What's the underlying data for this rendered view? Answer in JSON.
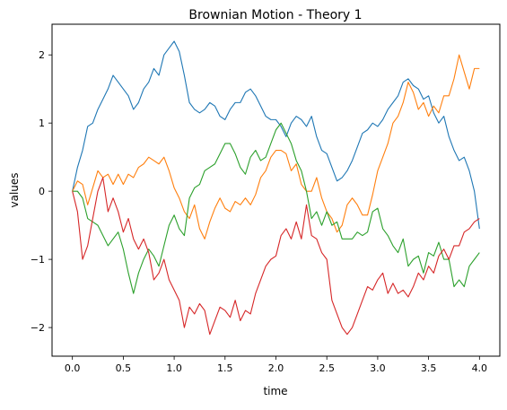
{
  "chart_data": {
    "type": "line",
    "title": "Brownian Motion - Theory 1",
    "xlabel": "time",
    "ylabel": "values",
    "xlim": [
      -0.2,
      4.2
    ],
    "ylim": [
      -2.42,
      2.45
    ],
    "x_ticks": [
      {
        "value": 0.0,
        "label": "0.0"
      },
      {
        "value": 0.5,
        "label": "0.5"
      },
      {
        "value": 1.0,
        "label": "1.0"
      },
      {
        "value": 1.5,
        "label": "1.5"
      },
      {
        "value": 2.0,
        "label": "2.0"
      },
      {
        "value": 2.5,
        "label": "2.5"
      },
      {
        "value": 3.0,
        "label": "3.0"
      },
      {
        "value": 3.5,
        "label": "3.5"
      },
      {
        "value": 4.0,
        "label": "4.0"
      }
    ],
    "y_ticks": [
      {
        "value": 2,
        "label": "2"
      },
      {
        "value": 1,
        "label": "1"
      },
      {
        "value": 0,
        "label": "0"
      },
      {
        "value": -1,
        "label": "−1"
      },
      {
        "value": -2,
        "label": "−2"
      }
    ],
    "grid": false,
    "legend": "none",
    "series": [
      {
        "color": "#1f77b4",
        "x": [
          0.0,
          0.05,
          0.1,
          0.15,
          0.2,
          0.25,
          0.3,
          0.35,
          0.4,
          0.45,
          0.5,
          0.55,
          0.6,
          0.65,
          0.7,
          0.75,
          0.8,
          0.85,
          0.9,
          0.95,
          1.0,
          1.05,
          1.1,
          1.15,
          1.2,
          1.25,
          1.3,
          1.35,
          1.4,
          1.45,
          1.5,
          1.55,
          1.6,
          1.65,
          1.7,
          1.75,
          1.8,
          1.85,
          1.9,
          1.95,
          2.0,
          2.05,
          2.1,
          2.15,
          2.2,
          2.25,
          2.3,
          2.35,
          2.4,
          2.45,
          2.5,
          2.55,
          2.6,
          2.65,
          2.7,
          2.75,
          2.8,
          2.85,
          2.9,
          2.95,
          3.0,
          3.05,
          3.1,
          3.15,
          3.2,
          3.25,
          3.3,
          3.35,
          3.4,
          3.45,
          3.5,
          3.55,
          3.6,
          3.65,
          3.7,
          3.75,
          3.8,
          3.85,
          3.9,
          3.95,
          4.0
        ],
        "values": [
          0.0,
          0.35,
          0.6,
          0.95,
          1.0,
          1.2,
          1.35,
          1.5,
          1.7,
          1.6,
          1.5,
          1.4,
          1.2,
          1.3,
          1.5,
          1.6,
          1.8,
          1.7,
          2.0,
          2.1,
          2.2,
          2.05,
          1.7,
          1.3,
          1.2,
          1.15,
          1.2,
          1.3,
          1.25,
          1.1,
          1.05,
          1.2,
          1.3,
          1.3,
          1.45,
          1.5,
          1.4,
          1.25,
          1.1,
          1.05,
          1.05,
          0.95,
          0.8,
          1.0,
          1.1,
          1.05,
          0.95,
          1.1,
          0.8,
          0.6,
          0.55,
          0.35,
          0.15,
          0.2,
          0.3,
          0.45,
          0.65,
          0.85,
          0.9,
          1.0,
          0.95,
          1.05,
          1.2,
          1.3,
          1.4,
          1.6,
          1.65,
          1.55,
          1.5,
          1.35,
          1.4,
          1.15,
          1.0,
          1.1,
          0.8,
          0.6,
          0.45,
          0.5,
          0.3,
          0.0,
          -0.55
        ]
      },
      {
        "color": "#ff7f0e",
        "x": [
          0.0,
          0.05,
          0.1,
          0.15,
          0.2,
          0.25,
          0.3,
          0.35,
          0.4,
          0.45,
          0.5,
          0.55,
          0.6,
          0.65,
          0.7,
          0.75,
          0.8,
          0.85,
          0.9,
          0.95,
          1.0,
          1.05,
          1.1,
          1.15,
          1.2,
          1.25,
          1.3,
          1.35,
          1.4,
          1.45,
          1.5,
          1.55,
          1.6,
          1.65,
          1.7,
          1.75,
          1.8,
          1.85,
          1.9,
          1.95,
          2.0,
          2.05,
          2.1,
          2.15,
          2.2,
          2.25,
          2.3,
          2.35,
          2.4,
          2.45,
          2.5,
          2.55,
          2.6,
          2.65,
          2.7,
          2.75,
          2.8,
          2.85,
          2.9,
          2.95,
          3.0,
          3.05,
          3.1,
          3.15,
          3.2,
          3.25,
          3.3,
          3.35,
          3.4,
          3.45,
          3.5,
          3.55,
          3.6,
          3.65,
          3.7,
          3.75,
          3.8,
          3.85,
          3.9,
          3.95,
          4.0
        ],
        "values": [
          0.0,
          0.15,
          0.1,
          -0.2,
          0.05,
          0.3,
          0.2,
          0.25,
          0.1,
          0.25,
          0.1,
          0.25,
          0.2,
          0.35,
          0.4,
          0.5,
          0.45,
          0.4,
          0.5,
          0.3,
          0.05,
          -0.1,
          -0.3,
          -0.4,
          -0.2,
          -0.55,
          -0.7,
          -0.45,
          -0.25,
          -0.1,
          -0.25,
          -0.3,
          -0.15,
          -0.2,
          -0.1,
          -0.2,
          -0.05,
          0.2,
          0.3,
          0.5,
          0.6,
          0.6,
          0.55,
          0.3,
          0.4,
          0.1,
          0.0,
          0.0,
          0.2,
          -0.1,
          -0.3,
          -0.4,
          -0.6,
          -0.5,
          -0.2,
          -0.1,
          -0.2,
          -0.35,
          -0.35,
          -0.05,
          0.3,
          0.5,
          0.7,
          1.0,
          1.1,
          1.3,
          1.6,
          1.45,
          1.2,
          1.3,
          1.1,
          1.25,
          1.15,
          1.4,
          1.4,
          1.65,
          2.0,
          1.75,
          1.5,
          1.8,
          1.8
        ]
      },
      {
        "color": "#2ca02c",
        "x": [
          0.0,
          0.05,
          0.1,
          0.15,
          0.2,
          0.25,
          0.3,
          0.35,
          0.4,
          0.45,
          0.5,
          0.55,
          0.6,
          0.65,
          0.7,
          0.75,
          0.8,
          0.85,
          0.9,
          0.95,
          1.0,
          1.05,
          1.1,
          1.15,
          1.2,
          1.25,
          1.3,
          1.35,
          1.4,
          1.45,
          1.5,
          1.55,
          1.6,
          1.65,
          1.7,
          1.75,
          1.8,
          1.85,
          1.9,
          1.95,
          2.0,
          2.05,
          2.1,
          2.15,
          2.2,
          2.25,
          2.3,
          2.35,
          2.4,
          2.45,
          2.5,
          2.55,
          2.6,
          2.65,
          2.7,
          2.75,
          2.8,
          2.85,
          2.9,
          2.95,
          3.0,
          3.05,
          3.1,
          3.15,
          3.2,
          3.25,
          3.3,
          3.35,
          3.4,
          3.45,
          3.5,
          3.55,
          3.6,
          3.65,
          3.7,
          3.75,
          3.8,
          3.85,
          3.9,
          3.95,
          4.0
        ],
        "values": [
          0.0,
          0.0,
          -0.1,
          -0.4,
          -0.45,
          -0.5,
          -0.65,
          -0.8,
          -0.7,
          -0.6,
          -0.85,
          -1.2,
          -1.5,
          -1.2,
          -1.0,
          -0.85,
          -0.95,
          -1.1,
          -0.8,
          -0.5,
          -0.35,
          -0.55,
          -0.65,
          -0.1,
          0.05,
          0.1,
          0.3,
          0.35,
          0.4,
          0.55,
          0.7,
          0.7,
          0.55,
          0.35,
          0.25,
          0.5,
          0.6,
          0.45,
          0.5,
          0.7,
          0.9,
          1.0,
          0.85,
          0.7,
          0.45,
          0.3,
          0.0,
          -0.4,
          -0.3,
          -0.5,
          -0.3,
          -0.5,
          -0.45,
          -0.7,
          -0.7,
          -0.7,
          -0.6,
          -0.65,
          -0.6,
          -0.3,
          -0.25,
          -0.55,
          -0.65,
          -0.8,
          -0.9,
          -0.7,
          -1.1,
          -1.0,
          -0.95,
          -1.2,
          -0.9,
          -0.95,
          -0.75,
          -1.0,
          -1.0,
          -1.4,
          -1.3,
          -1.4,
          -1.1,
          -1.0,
          -0.9
        ]
      },
      {
        "color": "#d62728",
        "x": [
          0.0,
          0.05,
          0.1,
          0.15,
          0.2,
          0.25,
          0.3,
          0.35,
          0.4,
          0.45,
          0.5,
          0.55,
          0.6,
          0.65,
          0.7,
          0.75,
          0.8,
          0.85,
          0.9,
          0.95,
          1.0,
          1.05,
          1.1,
          1.15,
          1.2,
          1.25,
          1.3,
          1.35,
          1.4,
          1.45,
          1.5,
          1.55,
          1.6,
          1.65,
          1.7,
          1.75,
          1.8,
          1.85,
          1.9,
          1.95,
          2.0,
          2.05,
          2.1,
          2.15,
          2.2,
          2.25,
          2.3,
          2.35,
          2.4,
          2.45,
          2.5,
          2.55,
          2.6,
          2.65,
          2.7,
          2.75,
          2.8,
          2.85,
          2.9,
          2.95,
          3.0,
          3.05,
          3.1,
          3.15,
          3.2,
          3.25,
          3.3,
          3.35,
          3.4,
          3.45,
          3.5,
          3.55,
          3.6,
          3.65,
          3.7,
          3.75,
          3.8,
          3.85,
          3.9,
          3.95,
          4.0
        ],
        "values": [
          0.0,
          -0.3,
          -1.0,
          -0.8,
          -0.4,
          0.0,
          0.2,
          -0.3,
          -0.1,
          -0.3,
          -0.6,
          -0.4,
          -0.7,
          -0.85,
          -0.7,
          -0.9,
          -1.3,
          -1.2,
          -1.0,
          -1.3,
          -1.45,
          -1.6,
          -2.0,
          -1.7,
          -1.8,
          -1.65,
          -1.75,
          -2.1,
          -1.9,
          -1.7,
          -1.75,
          -1.85,
          -1.6,
          -1.9,
          -1.75,
          -1.8,
          -1.5,
          -1.3,
          -1.1,
          -1.0,
          -0.95,
          -0.65,
          -0.55,
          -0.7,
          -0.45,
          -0.7,
          -0.2,
          -0.65,
          -0.7,
          -0.9,
          -1.0,
          -1.6,
          -1.8,
          -2.0,
          -2.1,
          -2.0,
          -1.8,
          -1.6,
          -1.4,
          -1.45,
          -1.3,
          -1.2,
          -1.5,
          -1.35,
          -1.5,
          -1.45,
          -1.55,
          -1.4,
          -1.2,
          -1.3,
          -1.1,
          -1.2,
          -0.95,
          -0.85,
          -1.0,
          -0.8,
          -0.8,
          -0.6,
          -0.55,
          -0.45,
          -0.4
        ]
      }
    ]
  }
}
